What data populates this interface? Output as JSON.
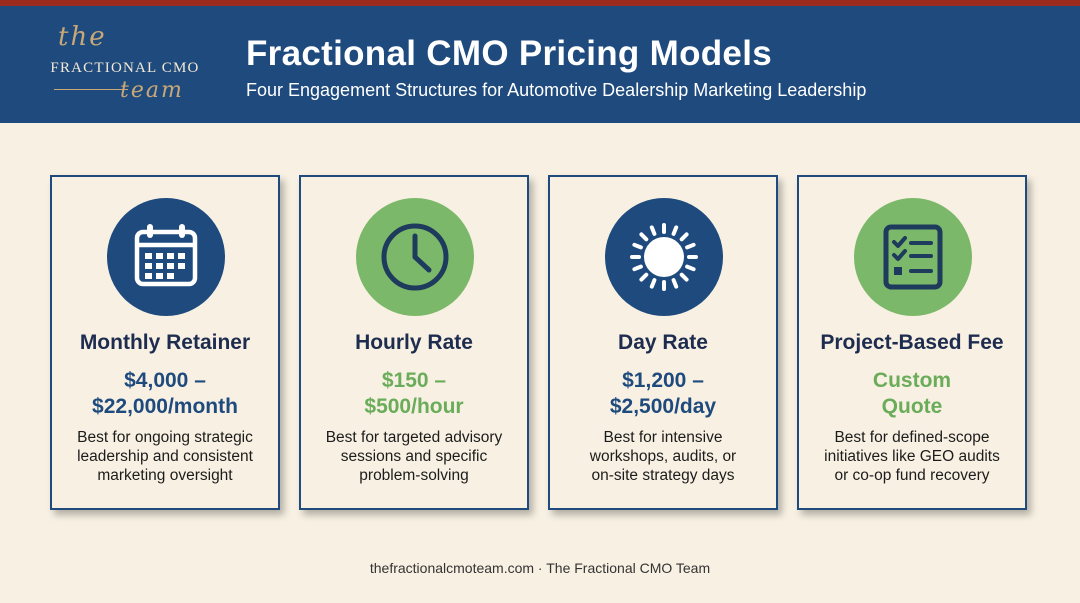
{
  "colors": {
    "header_bg": "#1e4a7d",
    "top_stripe": "#9c2a1f",
    "page_bg": "#f8f1e3",
    "navy": "#1e4a7d",
    "green": "#7bb86a",
    "price_green": "#6aac59",
    "gold": "#c9a877"
  },
  "logo": {
    "the": "the",
    "main": "FRACTIONAL CMO",
    "team": "team"
  },
  "header": {
    "title": "Fractional CMO Pricing Models",
    "subtitle": "Four Engagement Structures for Automotive Dealership Marketing Leadership"
  },
  "cards": [
    {
      "icon": "calendar-icon",
      "badge_color": "navy",
      "title": "Monthly Retainer",
      "price_lines": [
        "$4,000 –",
        "$22,000/month"
      ],
      "price_color": "navy",
      "desc_lines": [
        "Best for ongoing strategic",
        "leadership and consistent",
        "marketing oversight"
      ]
    },
    {
      "icon": "clock-icon",
      "badge_color": "green",
      "title": "Hourly Rate",
      "price_lines": [
        "$150 –",
        "$500/hour"
      ],
      "price_color": "green",
      "desc_lines": [
        "Best for targeted advisory",
        "sessions and specific",
        "problem-solving"
      ]
    },
    {
      "icon": "sun-icon",
      "badge_color": "navy",
      "title": "Day Rate",
      "price_lines": [
        "$1,200 –",
        "$2,500/day"
      ],
      "price_color": "navy",
      "desc_lines": [
        "Best for intensive",
        "workshops, audits, or",
        "on-site strategy days"
      ]
    },
    {
      "icon": "checklist-icon",
      "badge_color": "green",
      "title": "Project-Based Fee",
      "price_lines": [
        "Custom",
        "Quote"
      ],
      "price_color": "green",
      "desc_lines": [
        "Best for defined-scope",
        "initiatives like GEO audits",
        "or co-op fund recovery"
      ]
    }
  ],
  "footer": {
    "text": "thefractionalcmoteam.com · The Fractional CMO Team"
  }
}
